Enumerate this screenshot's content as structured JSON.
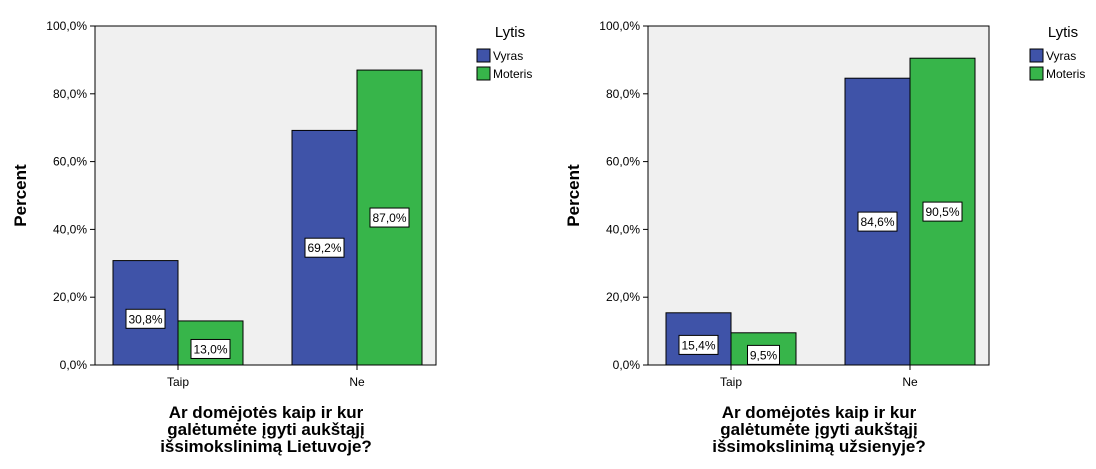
{
  "colors": {
    "vyras": "#3f53a8",
    "moteris": "#37b54a",
    "plot_bg": "#f0f0f0"
  },
  "chart_data": [
    {
      "type": "bar",
      "categories": [
        "Taip",
        "Ne"
      ],
      "series": [
        {
          "name": "Vyras",
          "values": [
            30.8,
            69.2
          ],
          "labels": [
            "30,8%",
            "69,2%"
          ]
        },
        {
          "name": "Moteris",
          "values": [
            13.0,
            87.0
          ],
          "labels": [
            "13,0%",
            "87,0%"
          ]
        }
      ],
      "ylabel": "Percent",
      "xlabel_lines": [
        "Ar domėjotės kaip ir kur",
        "galėtumėte įgyti aukštąjį",
        "išsimokslinimą Lietuvoje?"
      ],
      "ylim": [
        0,
        100
      ],
      "yticks": [
        "0,0%",
        "20,0%",
        "40,0%",
        "60,0%",
        "80,0%",
        "100,0%"
      ],
      "legend_title": "Lytis",
      "legend_labels": [
        "Vyras",
        "Moteris"
      ],
      "legend_position": "right",
      "grid": false
    },
    {
      "type": "bar",
      "categories": [
        "Taip",
        "Ne"
      ],
      "series": [
        {
          "name": "Vyras",
          "values": [
            15.4,
            84.6
          ],
          "labels": [
            "15,4%",
            "84,6%"
          ]
        },
        {
          "name": "Moteris",
          "values": [
            9.5,
            90.5
          ],
          "labels": [
            "9,5%",
            "90,5%"
          ]
        }
      ],
      "ylabel": "Percent",
      "xlabel_lines": [
        "Ar domėjotės kaip ir kur",
        "galėtumėte įgyti aukštąjį",
        "išsimokslinimą užsienyje?"
      ],
      "ylim": [
        0,
        100
      ],
      "yticks": [
        "0,0%",
        "20,0%",
        "40,0%",
        "60,0%",
        "80,0%",
        "100,0%"
      ],
      "legend_title": "Lytis",
      "legend_labels": [
        "Vyras",
        "Moteris"
      ],
      "legend_position": "right",
      "grid": false
    }
  ]
}
